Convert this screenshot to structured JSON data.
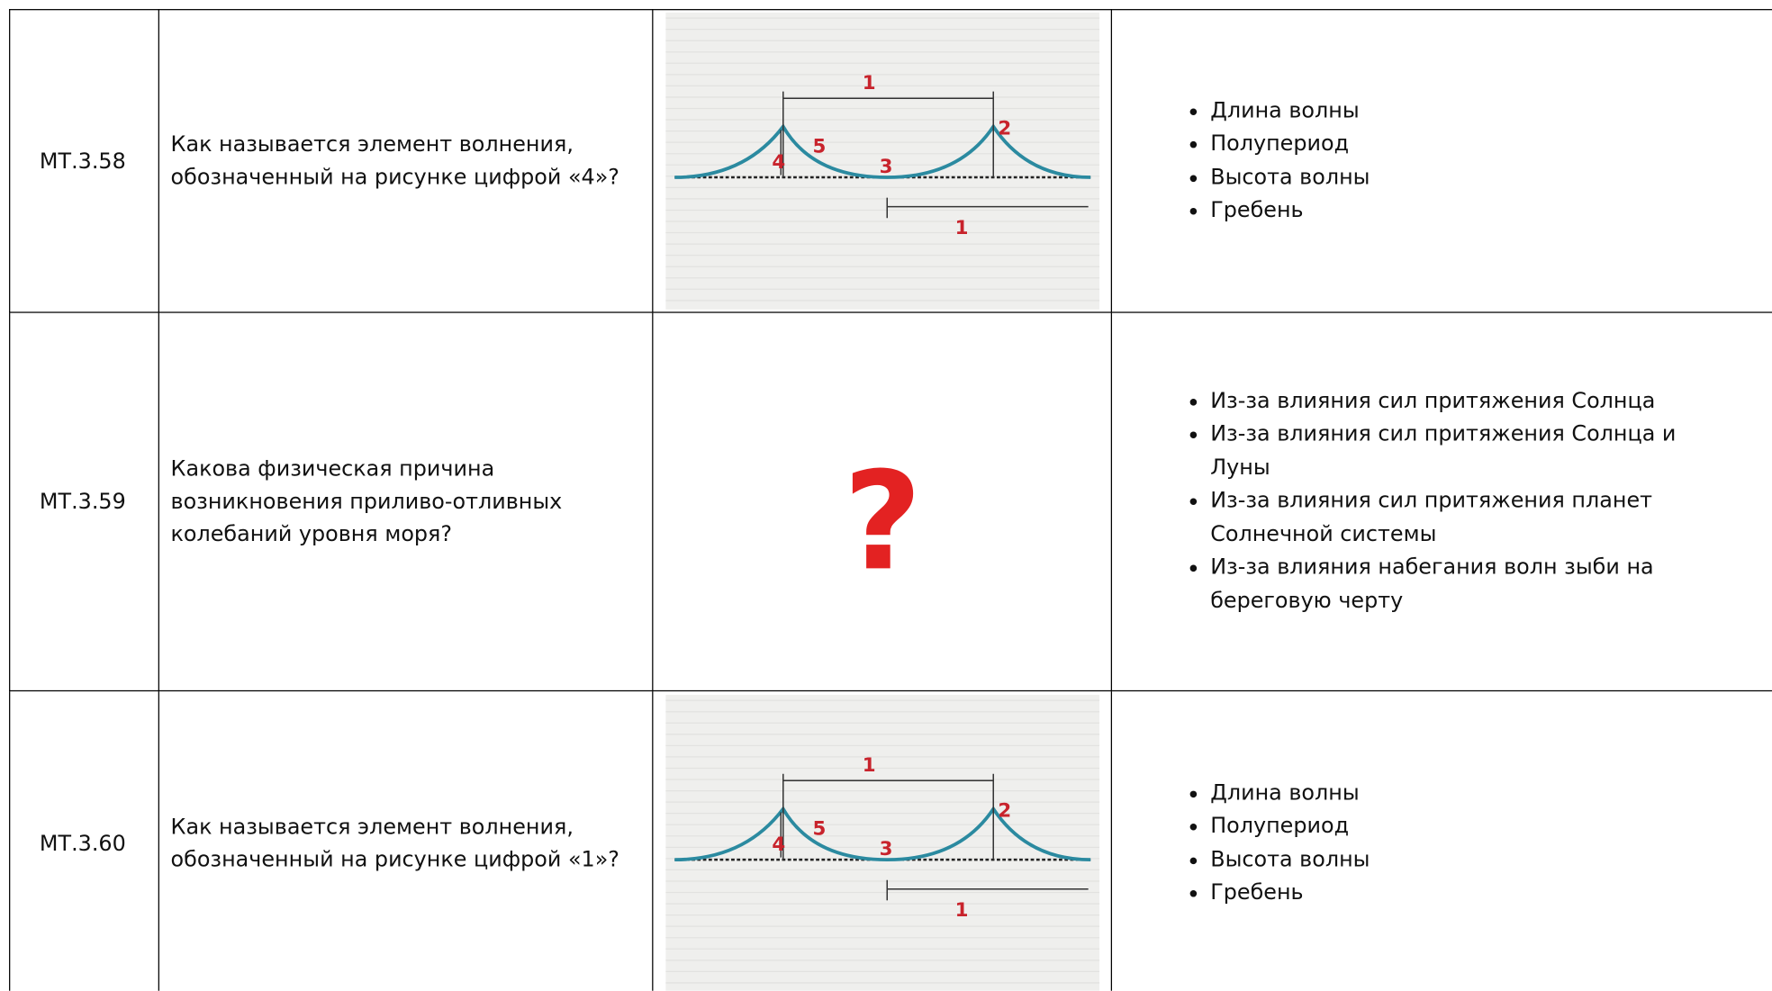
{
  "table": {
    "rows": [
      {
        "code": "МТ.3.58",
        "question": "Как называется элемент волнения, обозначенный на рисунке цифрой «4»?",
        "figure": {
          "labels": [
            "1",
            "2",
            "3",
            "4",
            "5",
            "1"
          ]
        },
        "options": [
          "Длина волны",
          "Полупериод",
          "Высота волны",
          "Гребень"
        ]
      },
      {
        "code": "МТ.3.59",
        "question": "Какова физическая причина возникновения приливо-отливных колебаний уровня моря?",
        "figure": {
          "symbol": "?"
        },
        "options": [
          "Из-за влияния сил притяжения Солнца",
          "Из-за влияния сил притяжения Солнца и Луны",
          "Из-за влияния сил притяжения планет Солнечной системы",
          "Из-за влияния набегания волн зыби на береговую черту"
        ]
      },
      {
        "code": "МТ.3.60",
        "question": "Как называется элемент волнения, обозначенный на рисунке цифрой «1»?",
        "figure": {
          "labels": [
            "1",
            "2",
            "3",
            "4",
            "5",
            "1"
          ]
        },
        "options": [
          "Длина волны",
          "Полупериод",
          "Высота волны",
          "Гребень"
        ]
      }
    ]
  }
}
